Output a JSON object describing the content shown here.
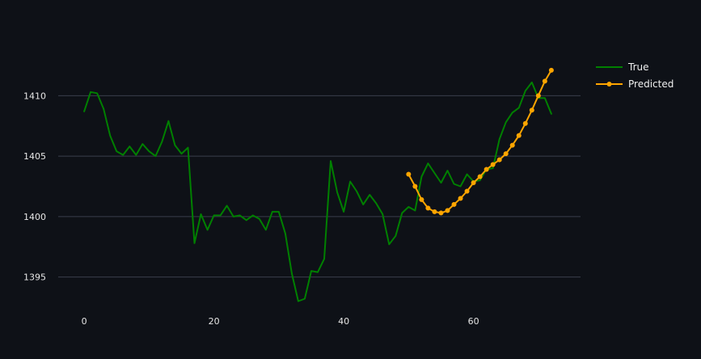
{
  "chart_data": {
    "type": "line",
    "title": "",
    "xlabel": "",
    "ylabel": "",
    "xlim": [
      -4,
      76.5
    ],
    "ylim": [
      1392.3,
      1413.9
    ],
    "x_ticks": [
      0,
      20,
      40,
      60
    ],
    "y_ticks": [
      1395,
      1400,
      1405,
      1410
    ],
    "grid": true,
    "legend_position": "top-right",
    "series": [
      {
        "name": "True",
        "color": "#008000",
        "markers": false,
        "x": [
          0,
          1,
          2,
          3,
          4,
          5,
          6,
          7,
          8,
          9,
          10,
          11,
          12,
          13,
          14,
          15,
          16,
          17,
          18,
          19,
          20,
          21,
          22,
          23,
          24,
          25,
          26,
          27,
          28,
          29,
          30,
          31,
          32,
          33,
          34,
          35,
          36,
          37,
          38,
          39,
          40,
          41,
          42,
          43,
          44,
          45,
          46,
          47,
          48,
          49,
          50,
          51,
          52,
          53,
          54,
          55,
          56,
          57,
          58,
          59,
          60,
          61,
          62,
          63,
          64,
          65,
          66,
          67,
          68,
          69,
          70,
          71,
          72
        ],
        "y": [
          1408.7,
          1410.3,
          1410.2,
          1408.9,
          1406.7,
          1405.4,
          1405.1,
          1405.8,
          1405.1,
          1406.0,
          1405.4,
          1405.0,
          1406.2,
          1407.9,
          1405.9,
          1405.2,
          1405.7,
          1397.8,
          1400.2,
          1398.9,
          1400.1,
          1400.1,
          1400.9,
          1400.0,
          1400.1,
          1399.7,
          1400.1,
          1399.8,
          1398.9,
          1400.4,
          1400.4,
          1398.6,
          1395.3,
          1393.0,
          1393.2,
          1395.5,
          1395.4,
          1396.5,
          1404.6,
          1402.0,
          1400.4,
          1402.9,
          1402.1,
          1401.0,
          1401.8,
          1401.1,
          1400.2,
          1397.7,
          1398.4,
          1400.3,
          1400.8,
          1400.5,
          1403.3,
          1404.4,
          1403.6,
          1402.8,
          1403.8,
          1402.7,
          1402.5,
          1403.5,
          1402.9,
          1403.0,
          1403.9,
          1404.0,
          1406.4,
          1407.8,
          1408.6,
          1409.0,
          1410.4,
          1411.1,
          1409.8,
          1409.8,
          1408.5
        ]
      },
      {
        "name": "Predicted",
        "color": "#ffa500",
        "markers": true,
        "x": [
          50,
          51,
          52,
          53,
          54,
          55,
          56,
          57,
          58,
          59,
          60,
          61,
          62,
          63,
          64,
          65,
          66,
          67,
          68,
          69,
          70,
          71,
          72
        ],
        "y": [
          1403.5,
          1402.5,
          1401.4,
          1400.7,
          1400.4,
          1400.3,
          1400.5,
          1401.0,
          1401.5,
          1402.1,
          1402.8,
          1403.3,
          1403.9,
          1404.3,
          1404.7,
          1405.2,
          1405.9,
          1406.7,
          1407.7,
          1408.8,
          1410.0,
          1411.2,
          1412.1
        ]
      }
    ]
  }
}
